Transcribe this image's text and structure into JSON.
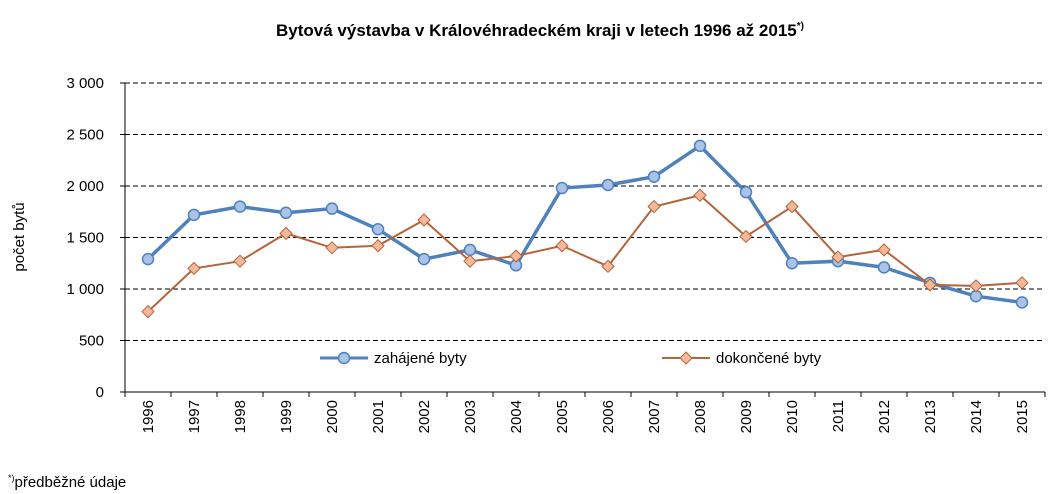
{
  "chart_data": {
    "type": "line",
    "title": "Bytová výstavba  v Královéhradeckém  kraji v letech  1996 až 2015",
    "title_superscript": "*)",
    "ylabel": "počet bytů",
    "footnote_marker": "*)",
    "footnote": "předběžné  údaje",
    "categories": [
      "1996",
      "1997",
      "1998",
      "1999",
      "2000",
      "2001",
      "2002",
      "2003",
      "2004",
      "2005",
      "2006",
      "2007",
      "2008",
      "2009",
      "2010",
      "2011",
      "2012",
      "2013",
      "2014",
      "2015"
    ],
    "series": [
      {
        "name": "zahájené byty",
        "color": "#4f81bd",
        "marker": "circle",
        "marker_fill": "#a9c4e6",
        "values": [
          1290,
          1720,
          1800,
          1740,
          1780,
          1580,
          1290,
          1380,
          1230,
          1980,
          2010,
          2090,
          2390,
          1940,
          1250,
          1270,
          1210,
          1060,
          930,
          870
        ]
      },
      {
        "name": "dokončené byty",
        "color": "#b5643a",
        "marker": "diamond",
        "marker_fill": "#f4b89a",
        "values": [
          780,
          1200,
          1270,
          1540,
          1400,
          1420,
          1670,
          1270,
          1320,
          1420,
          1220,
          1800,
          1910,
          1510,
          1800,
          1310,
          1380,
          1040,
          1030,
          1060
        ]
      }
    ],
    "ylim": [
      0,
      3000
    ],
    "yticks": [
      0,
      500,
      {
        "value": 1000,
        "label": "1 000"
      },
      {
        "value": 1500,
        "label": "1 500"
      },
      {
        "value": 2000,
        "label": "2 000"
      },
      {
        "value": 2500,
        "label": "2 500"
      },
      {
        "value": 3000,
        "label": "3 000"
      }
    ],
    "grid": true,
    "legend": "bottom"
  }
}
